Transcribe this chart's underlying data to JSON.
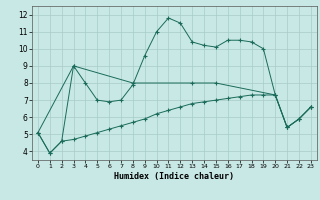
{
  "xlabel": "Humidex (Indice chaleur)",
  "xlim": [
    -0.5,
    23.5
  ],
  "ylim": [
    3.5,
    12.5
  ],
  "xticks": [
    0,
    1,
    2,
    3,
    4,
    5,
    6,
    7,
    8,
    9,
    10,
    11,
    12,
    13,
    14,
    15,
    16,
    17,
    18,
    19,
    20,
    21,
    22,
    23
  ],
  "yticks": [
    4,
    5,
    6,
    7,
    8,
    9,
    10,
    11,
    12
  ],
  "line_color": "#1a6b5a",
  "bg_color": "#c8e8e5",
  "grid_color": "#a8ccc8",
  "line1_x": [
    0,
    1,
    2,
    3,
    4,
    5,
    6,
    7,
    8,
    9,
    10,
    11,
    12,
    13,
    14,
    15,
    16,
    17,
    18,
    19,
    20,
    21,
    22,
    23
  ],
  "line1_y": [
    5.1,
    3.9,
    4.6,
    9.0,
    8.0,
    7.0,
    6.9,
    7.0,
    7.9,
    9.6,
    11.0,
    11.8,
    11.5,
    10.4,
    10.2,
    10.1,
    10.5,
    10.5,
    10.4,
    10.0,
    7.3,
    5.4,
    5.9,
    6.6
  ],
  "line2_x": [
    0,
    3,
    8,
    13,
    15,
    20,
    21,
    22,
    23
  ],
  "line2_y": [
    5.1,
    9.0,
    8.0,
    8.0,
    8.0,
    7.3,
    5.4,
    5.9,
    6.6
  ],
  "line3_x": [
    0,
    1,
    2,
    3,
    4,
    5,
    6,
    7,
    8,
    9,
    10,
    11,
    12,
    13,
    14,
    15,
    16,
    17,
    18,
    19,
    20,
    21,
    22,
    23
  ],
  "line3_y": [
    5.1,
    3.9,
    4.6,
    4.7,
    4.9,
    5.1,
    5.3,
    5.5,
    5.7,
    5.9,
    6.2,
    6.4,
    6.6,
    6.8,
    6.9,
    7.0,
    7.1,
    7.2,
    7.3,
    7.3,
    7.3,
    5.4,
    5.9,
    6.6
  ]
}
